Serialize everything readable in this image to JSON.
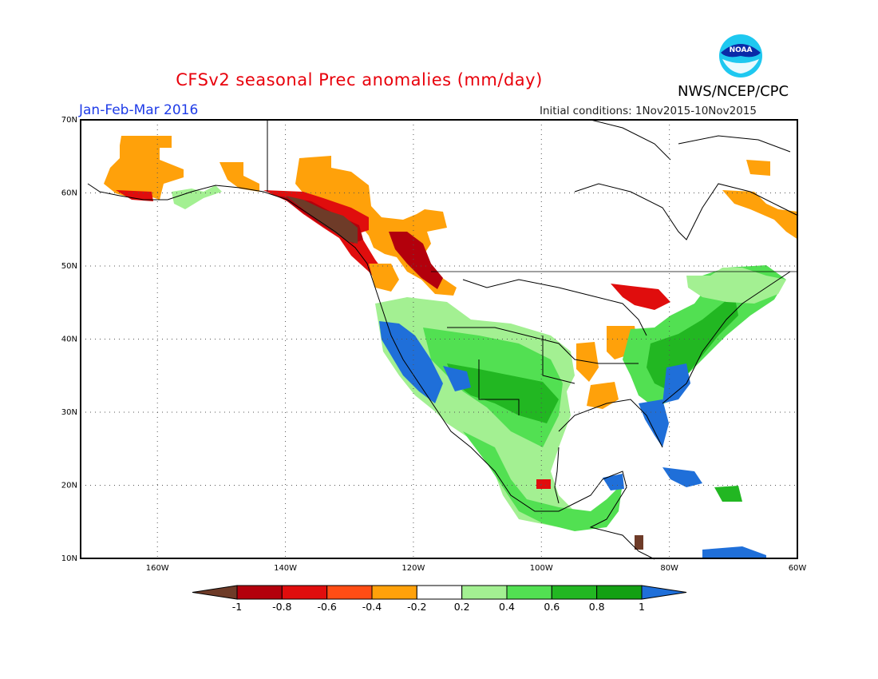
{
  "title": "CFSv2 seasonal Prec anomalies (mm/day)",
  "season": "Jan-Feb-Mar 2016",
  "initial_conditions": "Initial conditions: 1Nov2015-10Nov2015",
  "organization": "NWS/NCEP/CPC",
  "logo_text": "NOAA",
  "map": {
    "lon_range": [
      -172,
      -60
    ],
    "lat_range": [
      10,
      70
    ],
    "lat_labels": [
      "10N",
      "20N",
      "30N",
      "40N",
      "50N",
      "60N",
      "70N"
    ],
    "lon_labels": [
      "160W",
      "140W",
      "120W",
      "100W",
      "80W",
      "60W"
    ],
    "lat_values": [
      10,
      20,
      30,
      40,
      50,
      60,
      70
    ],
    "lon_values": [
      -160,
      -140,
      -120,
      -100,
      -80,
      -60
    ],
    "grid": "dotted"
  },
  "colorbar": {
    "labels": [
      "-1",
      "-0.8",
      "-0.6",
      "-0.4",
      "-0.2",
      "0.2",
      "0.4",
      "0.6",
      "0.8",
      "1"
    ],
    "bins": [
      {
        "range": "<-1",
        "color": "#6e3b28"
      },
      {
        "range": "-1 to -0.8",
        "color": "#b3000c"
      },
      {
        "range": "-0.8 to -0.6",
        "color": "#e00d0d"
      },
      {
        "range": "-0.6 to -0.4",
        "color": "#ff4d14"
      },
      {
        "range": "-0.4 to -0.2",
        "color": "#ffa10a"
      },
      {
        "range": "-0.2 to 0.2",
        "color": "#ffffff"
      },
      {
        "range": "0.2 to 0.4",
        "color": "#a3f092"
      },
      {
        "range": "0.4 to 0.6",
        "color": "#52e052"
      },
      {
        "range": "0.6 to 0.8",
        "color": "#22b722"
      },
      {
        "range": "0.8 to 1",
        "color": "#13a013"
      },
      {
        "range": ">1",
        "color": "#1f6fd9"
      }
    ]
  },
  "anomaly_regions": [
    {
      "region": "Alaska Panhandle / coastal BC",
      "category": ">1 dry",
      "color": "#6e3b28"
    },
    {
      "region": "Northern BC / Alberta",
      "category": "-1 to -0.6",
      "color": "#b3000c"
    },
    {
      "region": "Yukon / NW Canada",
      "category": "-0.4 to -0.2",
      "color": "#ffa10a"
    },
    {
      "region": "California",
      "category": ">1 wet",
      "color": "#1f6fd9"
    },
    {
      "region": "Florida / Southeast coast",
      "category": ">1 wet",
      "color": "#1f6fd9"
    },
    {
      "region": "Southern US / Mexico",
      "category": "0.4 to 0.8",
      "color": "#22b722"
    },
    {
      "region": "Northeast US",
      "category": "0.6 to 1",
      "color": "#13a013"
    },
    {
      "region": "Ohio Valley",
      "category": "-0.4 to -0.2",
      "color": "#ffa10a"
    }
  ]
}
